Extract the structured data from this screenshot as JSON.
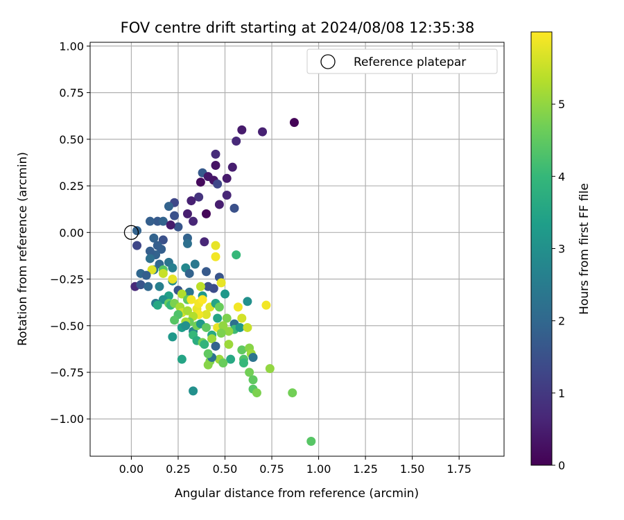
{
  "chart_data": {
    "type": "scatter",
    "title": "FOV centre drift starting at 2024/08/08 12:35:38",
    "xlabel": "Angular distance from reference (arcmin)",
    "ylabel": "Rotation from reference (arcmin)",
    "xlim": [
      -0.22,
      1.99
    ],
    "ylim": [
      -1.2,
      1.02
    ],
    "xticks": [
      0.0,
      0.25,
      0.5,
      0.75,
      1.0,
      1.25,
      1.5,
      1.75
    ],
    "xtick_labels": [
      "0.00",
      "0.25",
      "0.50",
      "0.75",
      "1.00",
      "1.25",
      "1.50",
      "1.75"
    ],
    "yticks": [
      1.0,
      0.75,
      0.5,
      0.25,
      0.0,
      -0.25,
      -0.5,
      -0.75,
      -1.0
    ],
    "ytick_labels": [
      "1.00",
      "0.75",
      "0.50",
      "0.25",
      "0.00",
      "−0.25",
      "−0.50",
      "−0.75",
      "−1.00"
    ],
    "grid": true,
    "legend": {
      "position": "top-right",
      "entries": [
        {
          "label": "Reference platepar",
          "marker": "open-circle"
        }
      ]
    },
    "reference_point": {
      "x": 0.0,
      "y": 0.0
    },
    "colorbar": {
      "label": "Hours from first FF file",
      "colormap": "viridis",
      "range": [
        0,
        6
      ],
      "ticks": [
        0,
        1,
        2,
        3,
        4,
        5
      ],
      "tick_labels": [
        "0",
        "1",
        "2",
        "3",
        "4",
        "5"
      ]
    },
    "colormap_stops": [
      "#440154",
      "#482878",
      "#3e4989",
      "#31688e",
      "#26828e",
      "#1f9e89",
      "#35b779",
      "#6ece58",
      "#b5de2b",
      "#fde725"
    ],
    "points": [
      [
        0.87,
        0.59,
        0.05
      ],
      [
        0.7,
        0.54,
        0.55
      ],
      [
        0.59,
        0.55,
        0.45
      ],
      [
        0.56,
        0.49,
        0.7
      ],
      [
        0.45,
        0.42,
        0.75
      ],
      [
        0.45,
        0.36,
        0.3
      ],
      [
        0.54,
        0.35,
        0.5
      ],
      [
        0.38,
        0.32,
        1.7
      ],
      [
        0.41,
        0.3,
        0.4
      ],
      [
        0.44,
        0.28,
        0.35
      ],
      [
        0.37,
        0.27,
        0.15
      ],
      [
        0.46,
        0.26,
        1.3
      ],
      [
        0.51,
        0.29,
        0.45
      ],
      [
        0.51,
        0.2,
        0.65
      ],
      [
        0.36,
        0.19,
        0.9
      ],
      [
        0.32,
        0.17,
        0.55
      ],
      [
        0.47,
        0.15,
        0.5
      ],
      [
        0.55,
        0.13,
        1.5
      ],
      [
        0.23,
        0.16,
        1.3
      ],
      [
        0.2,
        0.14,
        1.9
      ],
      [
        0.23,
        0.09,
        1.5
      ],
      [
        0.3,
        0.1,
        0.5
      ],
      [
        0.33,
        0.06,
        0.65
      ],
      [
        0.4,
        0.1,
        0.1
      ],
      [
        0.14,
        0.06,
        1.7
      ],
      [
        0.17,
        0.06,
        1.9
      ],
      [
        0.1,
        0.06,
        1.8
      ],
      [
        0.25,
        0.03,
        1.6
      ],
      [
        0.21,
        0.04,
        0.45
      ],
      [
        0.03,
        0.01,
        1.9
      ],
      [
        0.3,
        -0.03,
        1.9
      ],
      [
        0.3,
        -0.06,
        2.2
      ],
      [
        0.39,
        -0.05,
        0.65
      ],
      [
        0.12,
        -0.03,
        1.9
      ],
      [
        0.17,
        -0.04,
        1.5
      ],
      [
        0.14,
        -0.07,
        1.8
      ],
      [
        0.03,
        -0.07,
        1.3
      ],
      [
        0.16,
        -0.09,
        1.8
      ],
      [
        0.13,
        -0.12,
        1.9
      ],
      [
        0.1,
        -0.1,
        1.8
      ],
      [
        0.1,
        -0.14,
        2.2
      ],
      [
        0.15,
        -0.17,
        2.0
      ],
      [
        0.12,
        -0.2,
        2.3
      ],
      [
        0.2,
        -0.16,
        2.3
      ],
      [
        0.22,
        -0.19,
        2.6
      ],
      [
        0.17,
        -0.2,
        4.4
      ],
      [
        0.17,
        -0.22,
        5.5
      ],
      [
        0.11,
        -0.2,
        5.7
      ],
      [
        0.05,
        -0.22,
        2.0
      ],
      [
        0.08,
        -0.23,
        1.8
      ],
      [
        0.02,
        -0.29,
        0.7
      ],
      [
        0.05,
        -0.28,
        1.6
      ],
      [
        0.09,
        -0.29,
        2.0
      ],
      [
        0.15,
        -0.29,
        2.6
      ],
      [
        0.22,
        -0.26,
        2.9
      ],
      [
        0.22,
        -0.25,
        5.8
      ],
      [
        0.25,
        -0.31,
        1.6
      ],
      [
        0.29,
        -0.19,
        2.8
      ],
      [
        0.34,
        -0.17,
        2.4
      ],
      [
        0.4,
        -0.21,
        1.7
      ],
      [
        0.31,
        -0.22,
        1.9
      ],
      [
        0.45,
        -0.07,
        5.8
      ],
      [
        0.45,
        -0.13,
        5.9
      ],
      [
        0.56,
        -0.12,
        4.0
      ],
      [
        0.47,
        -0.24,
        1.6
      ],
      [
        0.48,
        -0.27,
        5.8
      ],
      [
        0.44,
        -0.3,
        1.4
      ],
      [
        0.41,
        -0.29,
        1.5
      ],
      [
        0.37,
        -0.29,
        5.4
      ],
      [
        0.38,
        -0.34,
        3.2
      ],
      [
        0.5,
        -0.33,
        3.2
      ],
      [
        0.31,
        -0.32,
        2.3
      ],
      [
        0.27,
        -0.33,
        5.3
      ],
      [
        0.3,
        -0.36,
        4.5
      ],
      [
        0.32,
        -0.36,
        5.9
      ],
      [
        0.2,
        -0.34,
        3.4
      ],
      [
        0.17,
        -0.36,
        3.0
      ],
      [
        0.13,
        -0.38,
        2.5
      ],
      [
        0.14,
        -0.39,
        3.6
      ],
      [
        0.2,
        -0.38,
        4.6
      ],
      [
        0.21,
        -0.39,
        4.0
      ],
      [
        0.23,
        -0.38,
        4.8
      ],
      [
        0.26,
        -0.4,
        5.2
      ],
      [
        0.27,
        -0.43,
        5.6
      ],
      [
        0.25,
        -0.44,
        4.3
      ],
      [
        0.3,
        -0.42,
        5.2
      ],
      [
        0.35,
        -0.41,
        5.8
      ],
      [
        0.36,
        -0.38,
        5.9
      ],
      [
        0.38,
        -0.36,
        6.0
      ],
      [
        0.42,
        -0.4,
        5.7
      ],
      [
        0.45,
        -0.38,
        3.5
      ],
      [
        0.47,
        -0.4,
        4.6
      ],
      [
        0.62,
        -0.37,
        3.0
      ],
      [
        0.72,
        -0.39,
        5.9
      ],
      [
        0.57,
        -0.4,
        5.9
      ],
      [
        0.59,
        -0.46,
        5.6
      ],
      [
        0.51,
        -0.46,
        4.8
      ],
      [
        0.46,
        -0.46,
        3.5
      ],
      [
        0.4,
        -0.44,
        5.7
      ],
      [
        0.36,
        -0.44,
        5.9
      ],
      [
        0.33,
        -0.45,
        5.3
      ],
      [
        0.31,
        -0.48,
        4.6
      ],
      [
        0.29,
        -0.48,
        5.2
      ],
      [
        0.27,
        -0.51,
        3.3
      ],
      [
        0.29,
        -0.5,
        3.0
      ],
      [
        0.33,
        -0.53,
        2.7
      ],
      [
        0.35,
        -0.5,
        4.7
      ],
      [
        0.37,
        -0.49,
        3.2
      ],
      [
        0.4,
        -0.51,
        4.5
      ],
      [
        0.46,
        -0.51,
        5.8
      ],
      [
        0.49,
        -0.5,
        5.0
      ],
      [
        0.55,
        -0.49,
        2.2
      ],
      [
        0.55,
        -0.52,
        4.1
      ],
      [
        0.58,
        -0.51,
        3.2
      ],
      [
        0.62,
        -0.51,
        5.5
      ],
      [
        0.52,
        -0.53,
        5.0
      ],
      [
        0.48,
        -0.54,
        4.8
      ],
      [
        0.43,
        -0.55,
        3.6
      ],
      [
        0.43,
        -0.57,
        5.1
      ],
      [
        0.33,
        -0.55,
        4.0
      ],
      [
        0.35,
        -0.58,
        3.7
      ],
      [
        0.38,
        -0.59,
        4.7
      ],
      [
        0.39,
        -0.6,
        3.9
      ],
      [
        0.45,
        -0.61,
        1.9
      ],
      [
        0.52,
        -0.6,
        5.1
      ],
      [
        0.59,
        -0.63,
        4.5
      ],
      [
        0.63,
        -0.62,
        4.9
      ],
      [
        0.64,
        -0.65,
        5.1
      ],
      [
        0.65,
        -0.67,
        2.3
      ],
      [
        0.6,
        -0.68,
        4.3
      ],
      [
        0.6,
        -0.7,
        4.0
      ],
      [
        0.53,
        -0.68,
        3.6
      ],
      [
        0.47,
        -0.68,
        5.1
      ],
      [
        0.49,
        -0.7,
        4.6
      ],
      [
        0.42,
        -0.69,
        4.8
      ],
      [
        0.41,
        -0.71,
        4.9
      ],
      [
        0.43,
        -0.67,
        2.3
      ],
      [
        0.41,
        -0.65,
        4.5
      ],
      [
        0.27,
        -0.68,
        3.5
      ],
      [
        0.22,
        -0.56,
        3.2
      ],
      [
        0.23,
        -0.47,
        4.4
      ],
      [
        0.63,
        -0.75,
        4.7
      ],
      [
        0.65,
        -0.79,
        4.5
      ],
      [
        0.65,
        -0.84,
        4.4
      ],
      [
        0.67,
        -0.86,
        4.8
      ],
      [
        0.74,
        -0.73,
        5.0
      ],
      [
        0.86,
        -0.86,
        4.7
      ],
      [
        0.96,
        -1.12,
        4.4
      ],
      [
        0.33,
        -0.85,
        3.0
      ]
    ]
  }
}
